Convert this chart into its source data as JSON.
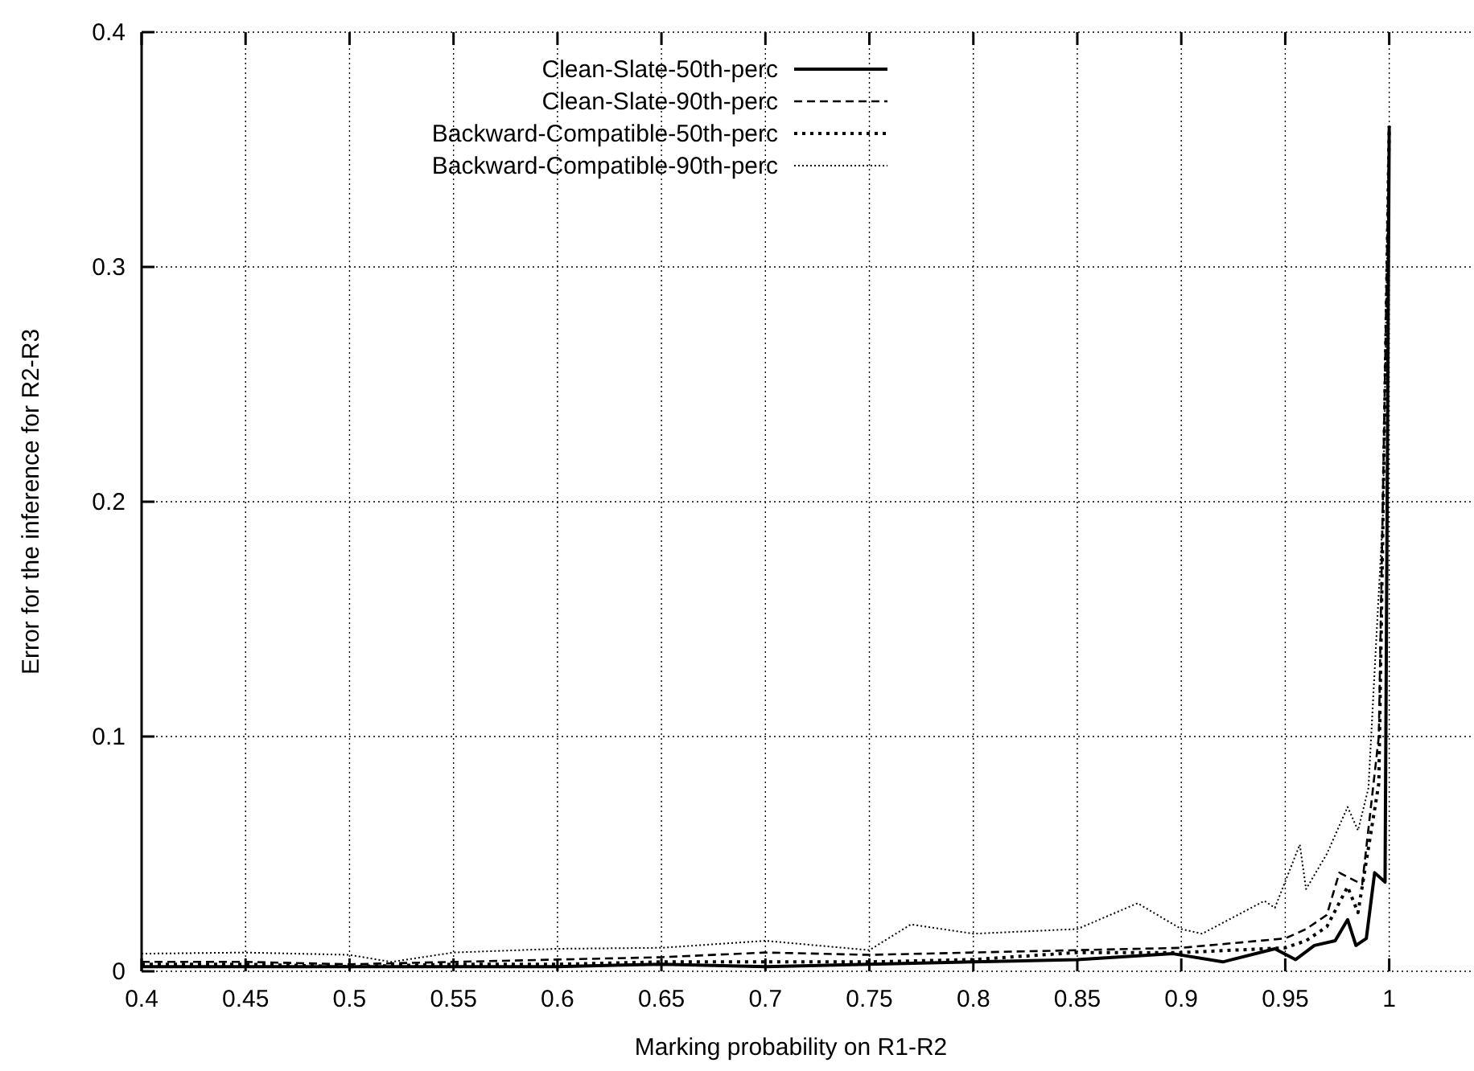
{
  "chart_data": {
    "type": "line",
    "xlabel": "Marking probability on R1-R2",
    "ylabel": "Error for the inference for R2-R3",
    "xlim": [
      0.4,
      1.04
    ],
    "xticks": [
      0.4,
      0.45,
      0.5,
      0.55,
      0.6,
      0.65,
      0.7,
      0.75,
      0.8,
      0.85,
      0.9,
      0.95,
      1
    ],
    "ylim": [
      0,
      0.4
    ],
    "yticks": [
      0,
      0.1,
      0.2,
      0.3,
      0.4
    ],
    "grid": true,
    "legend": "top",
    "series": [
      {
        "name": "Clean-Slate-50th-perc",
        "color": "#000000",
        "line_style": "solid",
        "x": [
          0.4,
          0.45,
          0.5,
          0.55,
          0.6,
          0.65,
          0.7,
          0.75,
          0.8,
          0.85,
          0.896,
          0.92,
          0.945,
          0.955,
          0.964,
          0.974,
          0.98,
          0.984,
          0.989,
          0.993,
          0.998,
          1
        ],
        "values": [
          0.002,
          0.002,
          0.002,
          0.002,
          0.002,
          0.003,
          0.002,
          0.003,
          0.004,
          0.005,
          0.0075,
          0.004,
          0.0096,
          0.005,
          0.011,
          0.013,
          0.022,
          0.011,
          0.014,
          0.042,
          0.038,
          0.36
        ]
      },
      {
        "name": "Clean-Slate-90th-perc",
        "color": "#000000",
        "line_style": "dashed",
        "x": [
          0.4,
          0.45,
          0.5,
          0.55,
          0.6,
          0.65,
          0.7,
          0.75,
          0.8,
          0.85,
          0.9,
          0.95,
          0.96,
          0.97,
          0.976,
          0.987,
          0.995,
          1
        ],
        "values": [
          0.004,
          0.004,
          0.003,
          0.004,
          0.005,
          0.006,
          0.008,
          0.007,
          0.008,
          0.009,
          0.01,
          0.014,
          0.018,
          0.024,
          0.042,
          0.037,
          0.1,
          0.36
        ]
      },
      {
        "name": "Backward-Compatible-50th-perc",
        "color": "#000000",
        "line_style": "dotted",
        "x": [
          0.4,
          0.45,
          0.5,
          0.55,
          0.6,
          0.65,
          0.7,
          0.75,
          0.8,
          0.85,
          0.9,
          0.95,
          0.96,
          0.97,
          0.98,
          0.985,
          0.995,
          1
        ],
        "values": [
          0.003,
          0.003,
          0.002,
          0.003,
          0.003,
          0.004,
          0.004,
          0.004,
          0.005,
          0.008,
          0.008,
          0.01,
          0.013,
          0.019,
          0.036,
          0.025,
          0.08,
          0.36
        ]
      },
      {
        "name": "Backward-Compatible-90th-perc",
        "color": "#000000",
        "line_style": "dotted",
        "x": [
          0.4,
          0.45,
          0.5,
          0.52,
          0.55,
          0.6,
          0.65,
          0.7,
          0.75,
          0.77,
          0.8,
          0.85,
          0.879,
          0.9,
          0.91,
          0.94,
          0.945,
          0.957,
          0.96,
          0.97,
          0.98,
          0.985,
          0.99,
          0.997,
          1
        ],
        "values": [
          0.0075,
          0.008,
          0.007,
          0.004,
          0.008,
          0.0096,
          0.01,
          0.013,
          0.009,
          0.02,
          0.016,
          0.018,
          0.029,
          0.018,
          0.016,
          0.03,
          0.027,
          0.054,
          0.035,
          0.05,
          0.07,
          0.06,
          0.078,
          0.195,
          0.36
        ]
      }
    ]
  }
}
